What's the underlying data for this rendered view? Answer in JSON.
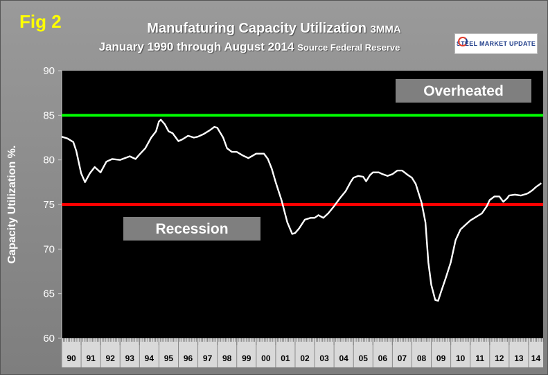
{
  "figure": {
    "label": "Fig 2",
    "title": "Manufaturing Capacity Utilization",
    "title_suffix": "3MMA",
    "subtitle": "January 1990 through August 2014",
    "subtitle_suffix": "Source Federal Reserve",
    "logo_text": "STEEL MARKET UPDATE"
  },
  "chart_data": {
    "type": "line",
    "title": "Manufaturing Capacity Utilization 3MMA",
    "subtitle": "January 1990 through August 2014 Source Federal Reserve",
    "xlabel": "",
    "ylabel": "Capacity Utilization %.",
    "ylim": [
      60,
      90
    ],
    "yticks": [
      60,
      65,
      70,
      75,
      80,
      85,
      90
    ],
    "xlim": [
      1990.0,
      2014.75
    ],
    "categories": [
      "90",
      "91",
      "92",
      "93",
      "94",
      "95",
      "96",
      "97",
      "98",
      "99",
      "00",
      "01",
      "02",
      "03",
      "04",
      "05",
      "06",
      "07",
      "08",
      "09",
      "10",
      "11",
      "12",
      "13",
      "14"
    ],
    "grid": false,
    "legend": "none",
    "line_color": "#ffffff",
    "plot_background": "#000000",
    "reference_lines": [
      {
        "label": "Overheated",
        "y": 85,
        "color": "#00ff00"
      },
      {
        "label": "Recession",
        "y": 75,
        "color": "#ff0000"
      }
    ],
    "series": [
      {
        "values": [
          [
            1990.0,
            82.6
          ],
          [
            1990.3,
            82.4
          ],
          [
            1990.6,
            82.0
          ],
          [
            1990.75,
            81.0
          ],
          [
            1991.0,
            78.5
          ],
          [
            1991.2,
            77.5
          ],
          [
            1991.45,
            78.5
          ],
          [
            1991.7,
            79.2
          ],
          [
            1992.0,
            78.6
          ],
          [
            1992.3,
            79.8
          ],
          [
            1992.6,
            80.1
          ],
          [
            1993.0,
            80.0
          ],
          [
            1993.5,
            80.4
          ],
          [
            1993.8,
            80.1
          ],
          [
            1994.0,
            80.6
          ],
          [
            1994.3,
            81.3
          ],
          [
            1994.6,
            82.5
          ],
          [
            1994.85,
            83.2
          ],
          [
            1995.0,
            84.3
          ],
          [
            1995.1,
            84.5
          ],
          [
            1995.3,
            84.0
          ],
          [
            1995.5,
            83.2
          ],
          [
            1995.7,
            83.0
          ],
          [
            1996.0,
            82.1
          ],
          [
            1996.2,
            82.3
          ],
          [
            1996.5,
            82.7
          ],
          [
            1996.8,
            82.5
          ],
          [
            1997.0,
            82.6
          ],
          [
            1997.3,
            82.9
          ],
          [
            1997.6,
            83.3
          ],
          [
            1997.85,
            83.7
          ],
          [
            1998.0,
            83.6
          ],
          [
            1998.3,
            82.5
          ],
          [
            1998.5,
            81.3
          ],
          [
            1998.75,
            80.9
          ],
          [
            1999.0,
            80.9
          ],
          [
            1999.3,
            80.5
          ],
          [
            1999.6,
            80.2
          ],
          [
            2000.0,
            80.7
          ],
          [
            2000.4,
            80.7
          ],
          [
            2000.6,
            80.1
          ],
          [
            2000.8,
            79.0
          ],
          [
            2001.0,
            77.5
          ],
          [
            2001.3,
            75.5
          ],
          [
            2001.6,
            73.0
          ],
          [
            2001.85,
            71.7
          ],
          [
            2002.0,
            71.8
          ],
          [
            2002.2,
            72.3
          ],
          [
            2002.5,
            73.3
          ],
          [
            2002.8,
            73.5
          ],
          [
            2003.0,
            73.5
          ],
          [
            2003.2,
            73.8
          ],
          [
            2003.45,
            73.5
          ],
          [
            2003.7,
            74.0
          ],
          [
            2004.0,
            74.8
          ],
          [
            2004.3,
            75.7
          ],
          [
            2004.6,
            76.5
          ],
          [
            2004.85,
            77.5
          ],
          [
            2005.0,
            78.0
          ],
          [
            2005.25,
            78.2
          ],
          [
            2005.5,
            78.1
          ],
          [
            2005.65,
            77.6
          ],
          [
            2005.85,
            78.3
          ],
          [
            2006.0,
            78.6
          ],
          [
            2006.3,
            78.6
          ],
          [
            2006.5,
            78.4
          ],
          [
            2006.75,
            78.2
          ],
          [
            2007.0,
            78.4
          ],
          [
            2007.25,
            78.8
          ],
          [
            2007.5,
            78.8
          ],
          [
            2007.8,
            78.3
          ],
          [
            2008.0,
            78.0
          ],
          [
            2008.2,
            77.3
          ],
          [
            2008.5,
            75.2
          ],
          [
            2008.7,
            73.0
          ],
          [
            2008.85,
            68.5
          ],
          [
            2009.0,
            66.0
          ],
          [
            2009.2,
            64.3
          ],
          [
            2009.35,
            64.2
          ],
          [
            2009.5,
            65.2
          ],
          [
            2009.75,
            66.8
          ],
          [
            2010.0,
            68.5
          ],
          [
            2010.25,
            71.0
          ],
          [
            2010.5,
            72.2
          ],
          [
            2010.8,
            72.8
          ],
          [
            2011.0,
            73.2
          ],
          [
            2011.3,
            73.6
          ],
          [
            2011.6,
            74.0
          ],
          [
            2011.85,
            74.8
          ],
          [
            2012.0,
            75.5
          ],
          [
            2012.25,
            75.9
          ],
          [
            2012.5,
            75.9
          ],
          [
            2012.7,
            75.3
          ],
          [
            2012.9,
            75.7
          ],
          [
            2013.0,
            76.0
          ],
          [
            2013.3,
            76.1
          ],
          [
            2013.6,
            76.0
          ],
          [
            2013.9,
            76.2
          ],
          [
            2014.0,
            76.3
          ],
          [
            2014.2,
            76.6
          ],
          [
            2014.4,
            77.0
          ],
          [
            2014.6,
            77.3
          ],
          [
            2014.65,
            77.4
          ]
        ]
      }
    ]
  }
}
